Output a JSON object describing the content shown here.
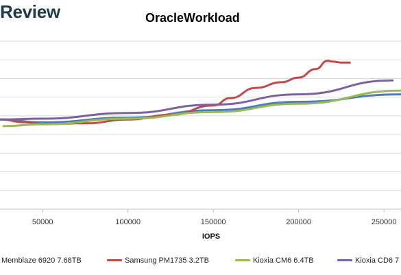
{
  "brand": {
    "text": "Review"
  },
  "chart_data": {
    "type": "line",
    "title": "OracleWorkload",
    "xlabel": "IOPS",
    "ylabel": "",
    "xlim": [
      25000,
      260000
    ],
    "ylim": [
      0,
      9
    ],
    "x_ticks": [
      50000,
      100000,
      150000,
      200000,
      250000
    ],
    "x_tick_labels": [
      "50000",
      "100000",
      "150000",
      "200000",
      "250000"
    ],
    "grid": true,
    "legend_position": "bottom",
    "series": [
      {
        "name": "Memblaze 6920 7.68TB",
        "color": "#4a7ebb",
        "x": [
          25000,
          50000,
          100000,
          150000,
          200000,
          260000
        ],
        "y": [
          4.8,
          4.65,
          4.9,
          5.3,
          5.75,
          6.15
        ]
      },
      {
        "name": "Samsung PM1735 3.2TB",
        "color": "#be4b48",
        "x": [
          25000,
          40000,
          50000,
          75000,
          100000,
          125000,
          150000,
          160000,
          175000,
          190000,
          200000,
          210000,
          217000,
          220000,
          225000,
          230000
        ],
        "y": [
          4.8,
          4.65,
          4.55,
          4.6,
          4.8,
          5.05,
          5.55,
          5.95,
          6.5,
          6.8,
          7.05,
          7.5,
          7.95,
          7.9,
          7.85,
          7.85
        ]
      },
      {
        "name": "Kioxia CM6 6.4TB",
        "color": "#98b954",
        "x": [
          27000,
          50000,
          100000,
          150000,
          200000,
          260000
        ],
        "y": [
          4.45,
          4.55,
          4.85,
          5.2,
          5.65,
          6.35
        ]
      },
      {
        "name": "Kioxia CD6 7",
        "color": "#7d60a0",
        "x": [
          25000,
          50000,
          100000,
          150000,
          200000,
          255000
        ],
        "y": [
          4.8,
          4.85,
          5.15,
          5.6,
          6.15,
          6.9
        ]
      }
    ]
  }
}
